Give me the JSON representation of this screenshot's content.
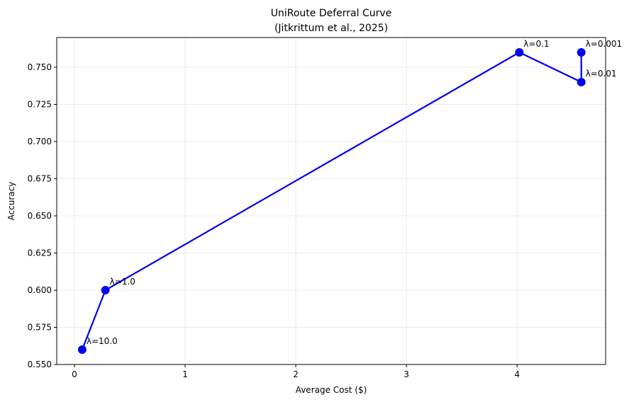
{
  "chart_data": {
    "type": "line",
    "title_line1": "UniRoute Deferral Curve",
    "title_line2": "(Jitkrittum et al., 2025)",
    "xlabel": "Average Cost ($)",
    "ylabel": "Accuracy",
    "xlim": [
      -0.16,
      4.8
    ],
    "ylim": [
      0.55,
      0.77
    ],
    "xticks": [
      0,
      1,
      2,
      3,
      4
    ],
    "yticks": [
      0.55,
      0.575,
      0.6,
      0.625,
      0.65,
      0.675,
      0.7,
      0.725,
      0.75
    ],
    "ytick_labels": [
      "0.550",
      "0.575",
      "0.600",
      "0.625",
      "0.650",
      "0.675",
      "0.700",
      "0.725",
      "0.750"
    ],
    "grid": true,
    "line_color": "#0000ee",
    "series": [
      {
        "points": [
          {
            "x": 0.07,
            "y": 0.56,
            "label": "λ=10.0"
          },
          {
            "x": 0.28,
            "y": 0.6,
            "label": "λ=1.0"
          },
          {
            "x": 4.02,
            "y": 0.76,
            "label": "λ=0.1"
          },
          {
            "x": 4.58,
            "y": 0.74,
            "label": "λ=0.01"
          },
          {
            "x": 4.58,
            "y": 0.76,
            "label": "λ=0.001"
          }
        ]
      }
    ]
  }
}
